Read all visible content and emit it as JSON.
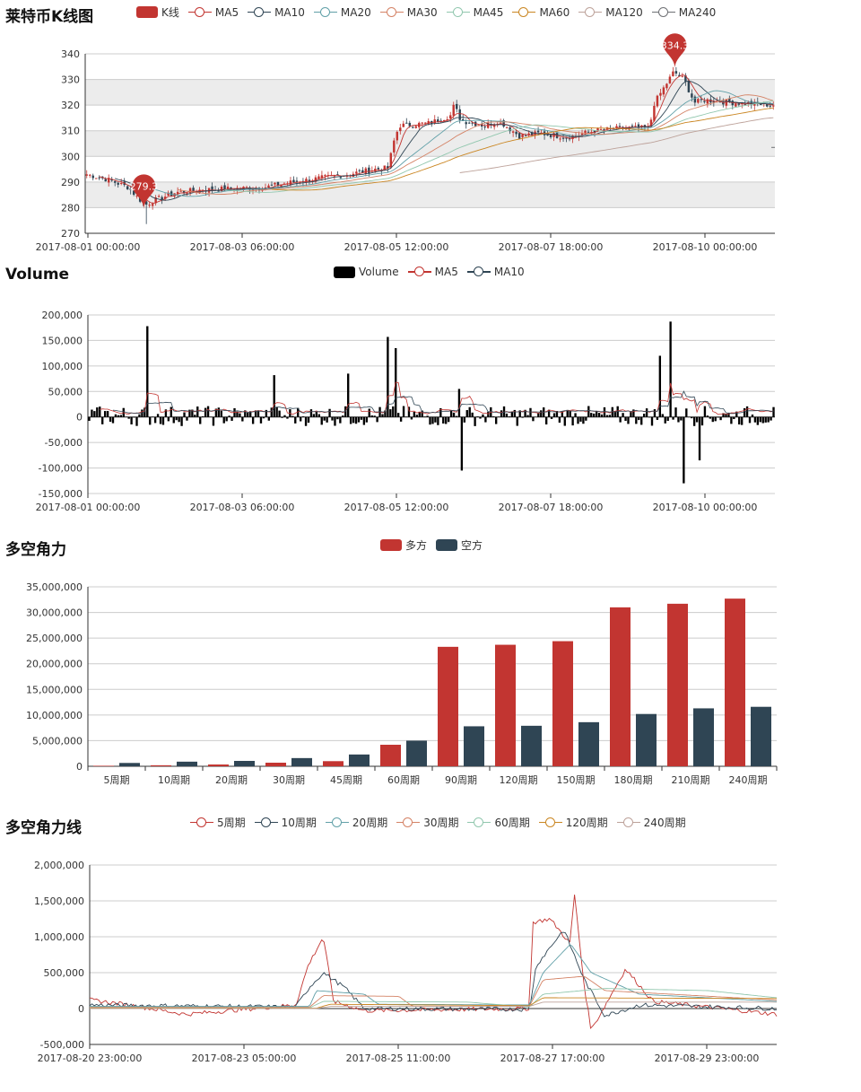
{
  "panels": {
    "kline": {
      "title": "莱特币K线图"
    },
    "volume": {
      "title": "Volume"
    },
    "power": {
      "title": "多空角力"
    },
    "powerline": {
      "title": "多空角力线"
    }
  },
  "colors": {
    "up": "#c23531",
    "down": "#2f4554",
    "ma5": "#c23531",
    "ma10": "#2f4554",
    "ma20": "#61a0a8",
    "ma30": "#d48265",
    "ma45": "#91c7ae",
    "ma60": "#ca8622",
    "ma120": "#bda29a",
    "ma240": "#6e7074"
  },
  "chart_data": [
    {
      "type": "candlestick",
      "title": "莱特币K线图",
      "legend": [
        "K线",
        "MA5",
        "MA10",
        "MA20",
        "MA30",
        "MA45",
        "MA60",
        "MA120",
        "MA240"
      ],
      "x_ticks": [
        "2017-08-01 00:00:00",
        "2017-08-03 06:00:00",
        "2017-08-05 12:00:00",
        "2017-08-07 18:00:00",
        "2017-08-10 00:00:00"
      ],
      "y_ticks": [
        270,
        280,
        290,
        300,
        310,
        320,
        330,
        340
      ],
      "ylim": [
        270,
        340
      ],
      "annotations": [
        {
          "label": "279.3",
          "x_fraction": 0.085,
          "value": 279.3
        },
        {
          "label": "334.3",
          "x_fraction": 0.855,
          "value": 334.3
        }
      ],
      "close_series_anchors": [
        [
          0.0,
          293
        ],
        [
          0.03,
          291
        ],
        [
          0.06,
          288
        ],
        [
          0.085,
          281
        ],
        [
          0.1,
          283
        ],
        [
          0.13,
          286
        ],
        [
          0.17,
          287
        ],
        [
          0.22,
          287.5
        ],
        [
          0.26,
          288
        ],
        [
          0.3,
          290
        ],
        [
          0.34,
          291.5
        ],
        [
          0.38,
          293
        ],
        [
          0.42,
          295
        ],
        [
          0.44,
          295.5
        ],
        [
          0.445,
          304
        ],
        [
          0.455,
          312
        ],
        [
          0.5,
          313
        ],
        [
          0.53,
          316
        ],
        [
          0.535,
          320
        ],
        [
          0.545,
          314
        ],
        [
          0.58,
          312
        ],
        [
          0.6,
          314
        ],
        [
          0.63,
          308
        ],
        [
          0.66,
          309
        ],
        [
          0.7,
          307.5
        ],
        [
          0.74,
          310
        ],
        [
          0.78,
          311
        ],
        [
          0.82,
          311
        ],
        [
          0.825,
          320
        ],
        [
          0.855,
          333
        ],
        [
          0.87,
          330
        ],
        [
          0.885,
          321
        ],
        [
          0.9,
          322
        ],
        [
          0.94,
          321
        ],
        [
          1.0,
          320
        ]
      ]
    },
    {
      "type": "bar",
      "title": "Volume",
      "legend": [
        "Volume",
        "MA5",
        "MA10"
      ],
      "x_ticks": [
        "2017-08-01 00:00:00",
        "2017-08-03 06:00:00",
        "2017-08-05 12:00:00",
        "2017-08-07 18:00:00",
        "2017-08-10 00:00:00"
      ],
      "y_ticks": [
        "200,000",
        "150,000",
        "100,000",
        "50,000",
        "0",
        "-50,000",
        "-100,000",
        "-150,000"
      ],
      "ylim": [
        -150000,
        200000
      ],
      "spikes": [
        [
          0.085,
          178000
        ],
        [
          0.27,
          82000
        ],
        [
          0.38,
          85000
        ],
        [
          0.437,
          157000
        ],
        [
          0.447,
          135000
        ],
        [
          0.54,
          55000
        ],
        [
          0.545,
          -105000
        ],
        [
          0.835,
          120000
        ],
        [
          0.85,
          187000
        ],
        [
          0.87,
          -130000
        ],
        [
          0.89,
          -85000
        ]
      ]
    },
    {
      "type": "bar",
      "title": "多空角力",
      "categories": [
        "5周期",
        "10周期",
        "20周期",
        "30周期",
        "45周期",
        "60周期",
        "90周期",
        "120周期",
        "150周期",
        "180周期",
        "210周期",
        "240周期"
      ],
      "series": [
        {
          "name": "多方",
          "values": [
            100000,
            200000,
            350000,
            700000,
            1000000,
            4200000,
            23300000,
            23700000,
            24400000,
            31000000,
            31700000,
            32700000
          ]
        },
        {
          "name": "空方",
          "values": [
            650000,
            900000,
            1050000,
            1600000,
            2300000,
            5000000,
            7800000,
            7900000,
            8600000,
            10200000,
            11300000,
            11600000
          ]
        }
      ],
      "y_ticks": [
        "35,000,000",
        "30,000,000",
        "25,000,000",
        "20,000,000",
        "15,000,000",
        "10,000,000",
        "5,000,000",
        "0"
      ],
      "ylim": [
        0,
        35000000
      ]
    },
    {
      "type": "line",
      "title": "多空角力线",
      "legend": [
        "5周期",
        "10周期",
        "20周期",
        "30周期",
        "60周期",
        "120周期",
        "240周期"
      ],
      "x_ticks": [
        "2017-08-20 23:00:00",
        "2017-08-23 05:00:00",
        "2017-08-25 11:00:00",
        "2017-08-27 17:00:00",
        "2017-08-29 23:00:00"
      ],
      "y_ticks": [
        "2,000,000",
        "1,500,000",
        "1,000,000",
        "500,000",
        "0",
        "-500,000"
      ],
      "ylim": [
        -500000,
        2000000
      ]
    }
  ]
}
